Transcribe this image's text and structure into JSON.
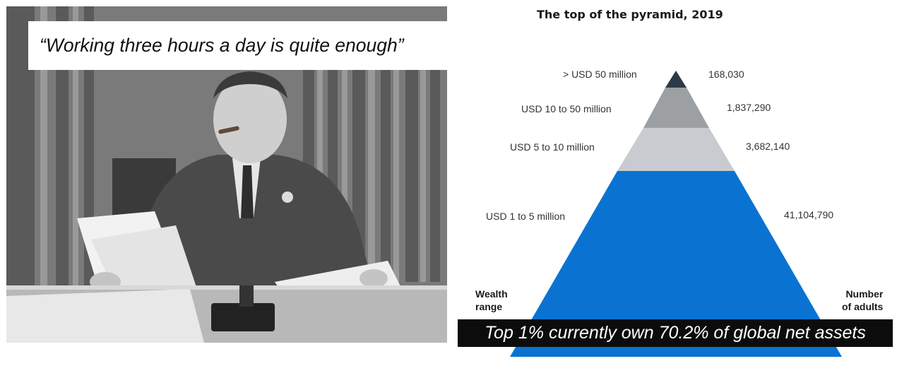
{
  "photo": {
    "quote": "“Working three hours a day is quite enough”"
  },
  "pyramid": {
    "title": "The top of the pyramid, 2019",
    "tiers": [
      {
        "range": ">  USD 50 million",
        "adults": "168,030",
        "color": "#2b3a48"
      },
      {
        "range": "USD  10 to 50 million",
        "adults": "1,837,290",
        "color": "#9da0a3"
      },
      {
        "range": "USD 5 to 10 million",
        "adults": "3,682,140",
        "color": "#c8ccd1"
      },
      {
        "range": "USD 1 to 5 million",
        "adults": "41,104,790",
        "color": "#0a73d1"
      }
    ],
    "left_caption": {
      "line1": "Wealth",
      "line2": "range"
    },
    "right_caption": {
      "line1": "Number",
      "line2": "of adults"
    }
  },
  "banner": {
    "text": "Top 1% currently own 70.2% of global net assets"
  }
}
